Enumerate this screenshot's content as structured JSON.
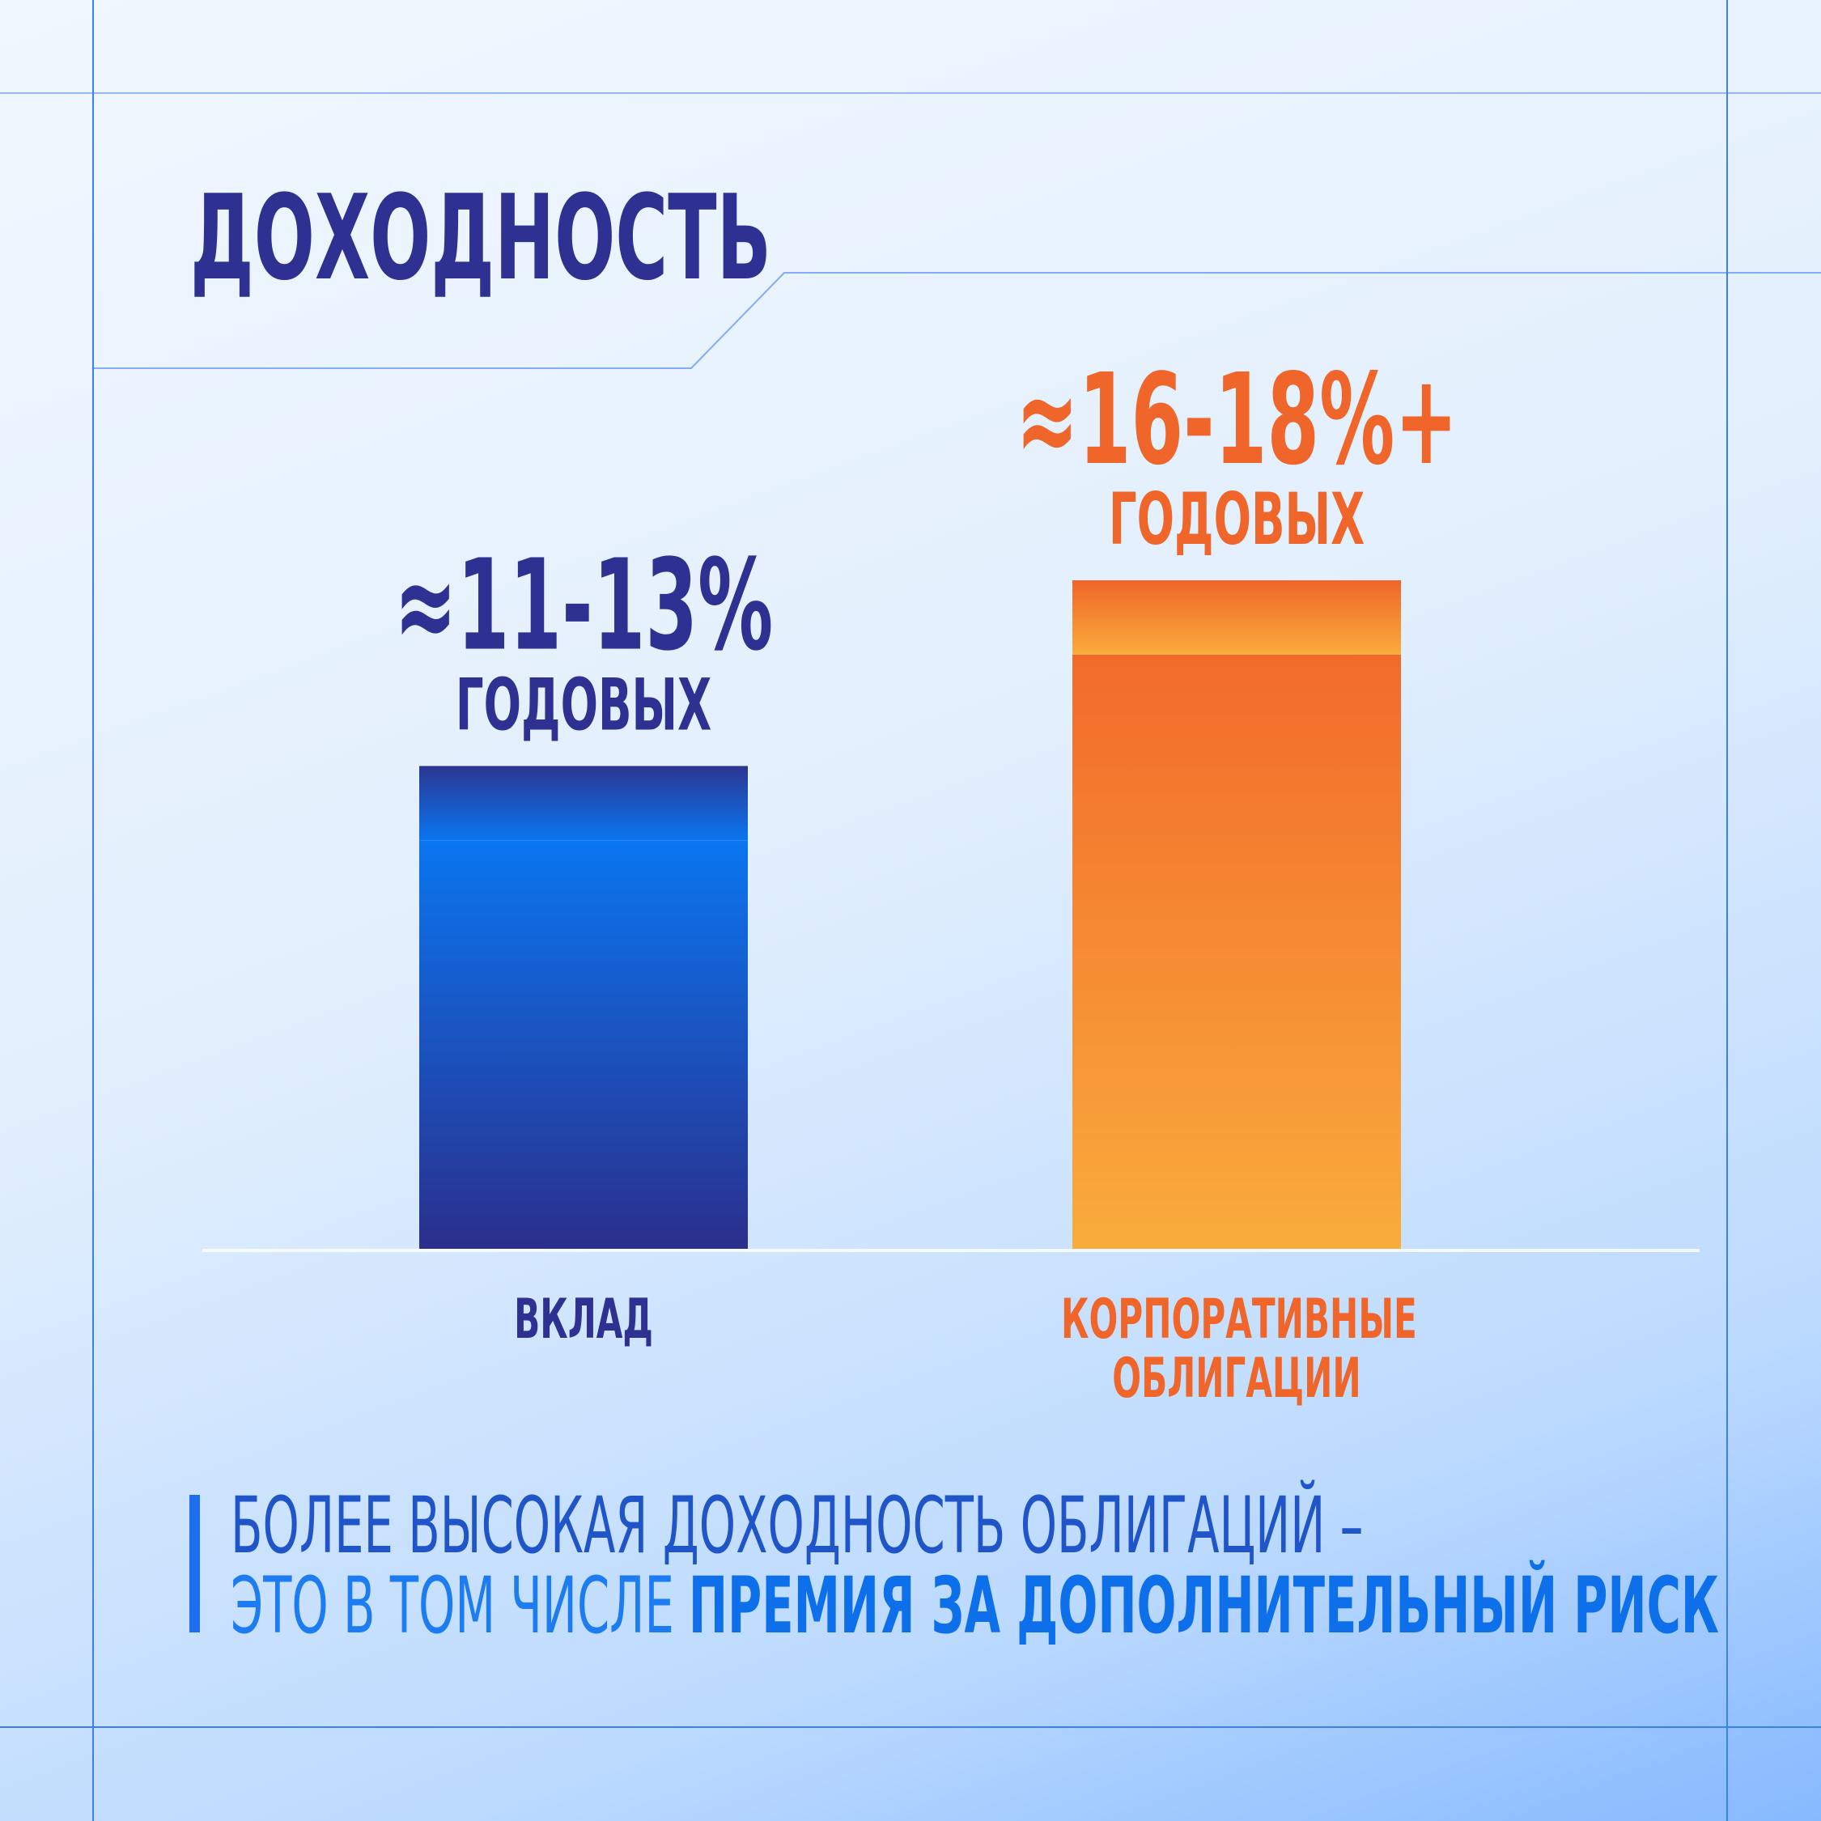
{
  "chart_data": {
    "type": "bar",
    "title": "ДОХОДНОСТЬ",
    "categories": [
      "ВКЛАД",
      "КОРПОРАТИВНЫЕ ОБЛИГАЦИИ"
    ],
    "series": [
      {
        "values": [
          11,
          16
        ],
        "colors": [
          [
            "#0a76f0",
            "#2b2f8c"
          ],
          [
            "#f26a2a",
            "#f9ac3c"
          ]
        ]
      },
      {
        "values": [
          2,
          2
        ],
        "colors": [
          [
            "#2b3590",
            "#0a76f0"
          ],
          [
            "#f06528",
            "#f9ac3c"
          ]
        ]
      }
    ],
    "bar_labels": [
      "≈11-13%",
      "≈16-18%+"
    ],
    "bar_sublabels": [
      "ГОДОВЫХ",
      "ГОДОВЫХ"
    ],
    "label_colors": [
      "#2e3192",
      "#f0652a"
    ],
    "ylim": [
      0,
      18
    ],
    "footnote": [
      "БОЛЕЕ ВЫСОКАЯ ДОХОДНОСТЬ ОБЛИГАЦИЙ –",
      "ЭТО В ТОМ ЧИСЛЕ",
      "ПРЕМИЯ ЗА ДОПОЛНИТЕЛЬНЫЙ РИСК"
    ]
  }
}
